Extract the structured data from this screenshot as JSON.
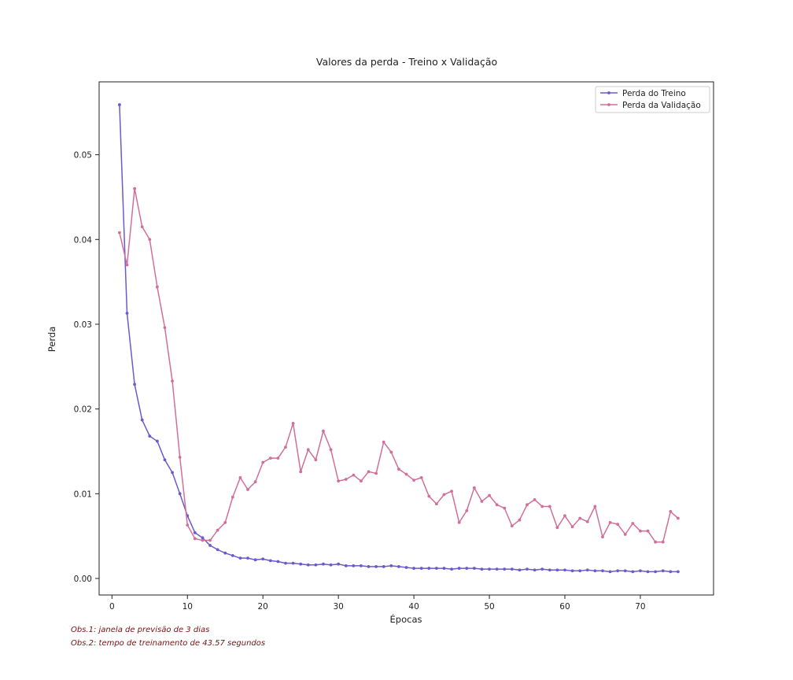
{
  "chart_data": {
    "type": "line",
    "title": "Valores da perda - Treino x Validação",
    "xlabel": "Épocas",
    "ylabel": "Perda",
    "xlim": [
      -1.7,
      79.7
    ],
    "ylim": [
      -0.00195,
      0.0586
    ],
    "xticks": [
      0,
      10,
      20,
      30,
      40,
      50,
      60,
      70
    ],
    "yticks": [
      0.0,
      0.01,
      0.02,
      0.03,
      0.04,
      0.05
    ],
    "ytick_labels": [
      "0.00",
      "0.01",
      "0.02",
      "0.03",
      "0.04",
      "0.05"
    ],
    "grid": false,
    "legend_position": "top-right",
    "series": [
      {
        "name": "Perda do Treino",
        "color": "#6a5acd",
        "x": [
          1,
          2,
          3,
          4,
          5,
          6,
          7,
          8,
          9,
          10,
          11,
          12,
          13,
          14,
          15,
          16,
          17,
          18,
          19,
          20,
          21,
          22,
          23,
          24,
          25,
          26,
          27,
          28,
          29,
          30,
          31,
          32,
          33,
          34,
          35,
          36,
          37,
          38,
          39,
          40,
          41,
          42,
          43,
          44,
          45,
          46,
          47,
          48,
          49,
          50,
          51,
          52,
          53,
          54,
          55,
          56,
          57,
          58,
          59,
          60,
          61,
          62,
          63,
          64,
          65,
          66,
          67,
          68,
          69,
          70,
          71,
          72,
          73,
          74,
          75
        ],
        "values": [
          0.0559,
          0.0313,
          0.0229,
          0.0187,
          0.0168,
          0.0162,
          0.014,
          0.0125,
          0.01,
          0.0074,
          0.0054,
          0.0048,
          0.0039,
          0.0034,
          0.003,
          0.0027,
          0.0024,
          0.0024,
          0.0022,
          0.0023,
          0.0021,
          0.002,
          0.0018,
          0.0018,
          0.0017,
          0.0016,
          0.0016,
          0.0017,
          0.0016,
          0.0017,
          0.0015,
          0.0015,
          0.0015,
          0.0014,
          0.0014,
          0.0014,
          0.0015,
          0.0014,
          0.0013,
          0.0012,
          0.0012,
          0.0012,
          0.0012,
          0.0012,
          0.0011,
          0.0012,
          0.0012,
          0.0012,
          0.0011,
          0.0011,
          0.0011,
          0.0011,
          0.0011,
          0.001,
          0.0011,
          0.001,
          0.0011,
          0.001,
          0.001,
          0.001,
          0.0009,
          0.0009,
          0.001,
          0.0009,
          0.0009,
          0.0008,
          0.0009,
          0.0009,
          0.0008,
          0.0009,
          0.0008,
          0.0008,
          0.0009,
          0.0008,
          0.0008
        ]
      },
      {
        "name": "Perda da Validação",
        "color": "#d0709a",
        "x": [
          1,
          2,
          3,
          4,
          5,
          6,
          7,
          8,
          9,
          10,
          11,
          12,
          13,
          14,
          15,
          16,
          17,
          18,
          19,
          20,
          21,
          22,
          23,
          24,
          25,
          26,
          27,
          28,
          29,
          30,
          31,
          32,
          33,
          34,
          35,
          36,
          37,
          38,
          39,
          40,
          41,
          42,
          43,
          44,
          45,
          46,
          47,
          48,
          49,
          50,
          51,
          52,
          53,
          54,
          55,
          56,
          57,
          58,
          59,
          60,
          61,
          62,
          63,
          64,
          65,
          66,
          67,
          68,
          69,
          70,
          71,
          72,
          73,
          74,
          75
        ],
        "values": [
          0.0408,
          0.037,
          0.046,
          0.0415,
          0.04,
          0.0344,
          0.0296,
          0.0233,
          0.0143,
          0.0063,
          0.0047,
          0.0045,
          0.0045,
          0.0057,
          0.0066,
          0.0096,
          0.0119,
          0.0105,
          0.0114,
          0.0137,
          0.0142,
          0.0142,
          0.0155,
          0.0183,
          0.0126,
          0.0152,
          0.014,
          0.0174,
          0.0152,
          0.0115,
          0.0117,
          0.0122,
          0.0115,
          0.0126,
          0.0124,
          0.0161,
          0.0149,
          0.0129,
          0.0123,
          0.0116,
          0.0119,
          0.0097,
          0.0088,
          0.0099,
          0.0103,
          0.0066,
          0.008,
          0.0107,
          0.0091,
          0.0098,
          0.0087,
          0.0083,
          0.0062,
          0.0069,
          0.0087,
          0.0093,
          0.0085,
          0.0085,
          0.006,
          0.0074,
          0.0061,
          0.0071,
          0.0067,
          0.0085,
          0.0049,
          0.0066,
          0.0064,
          0.0052,
          0.0065,
          0.0056,
          0.0056,
          0.0043,
          0.0043,
          0.0079,
          0.0071
        ]
      }
    ]
  },
  "notes": [
    "Obs.1: janela de previsão de 3 dias",
    "Obs.2: tempo de treinamento de 43.57 segundos"
  ]
}
